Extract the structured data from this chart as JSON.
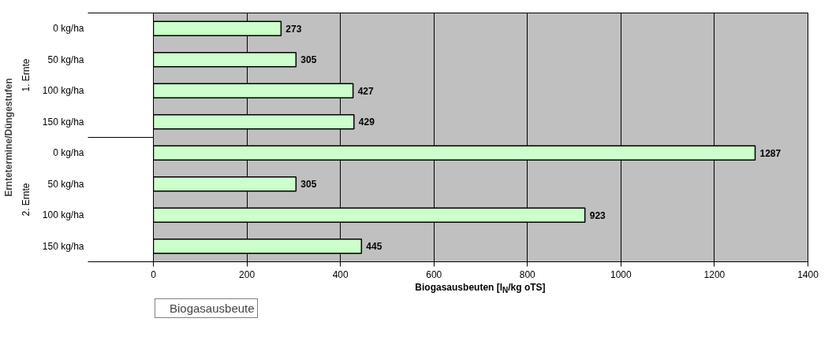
{
  "chart_data": {
    "type": "bar",
    "orientation": "horizontal",
    "xlabel": "Biogasausbeuten [l$_{N}$/kg oTS]",
    "ylabel": "Erntetermine/Düngestufen",
    "categories": [
      "0 kg/ha",
      "50 kg/ha",
      "100 kg/ha",
      "150 kg/ha",
      "0 kg/ha",
      "50 kg/ha",
      "100 kg/ha",
      "150 kg/ha"
    ],
    "series": [
      {
        "name": "Biogasausbeute",
        "color": "#ccffcc",
        "values": [
          273,
          305,
          427,
          429,
          1287,
          305,
          923,
          445
        ]
      }
    ],
    "data_labels": true,
    "annotations": [
      "1. Ernte",
      "2. Ernte"
    ],
    "xlim": [
      0,
      1400
    ],
    "xticks": [
      0,
      200,
      400,
      600,
      800,
      1000,
      1200,
      1400
    ],
    "grid": "x",
    "legend": "bottom left"
  }
}
